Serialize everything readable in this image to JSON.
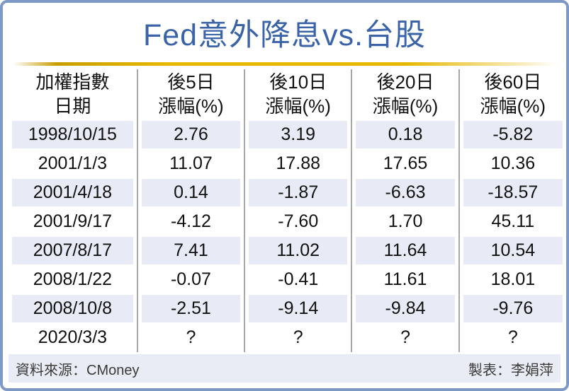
{
  "title": "Fed意外降息vs.台股",
  "table": {
    "columns": [
      {
        "line1": "加權指數",
        "line2": "日期"
      },
      {
        "line1": "後5日",
        "line2": "漲幅(%)"
      },
      {
        "line1": "後10日",
        "line2": "漲幅(%)"
      },
      {
        "line1": "後20日",
        "line2": "漲幅(%)"
      },
      {
        "line1": "後60日",
        "line2": "漲幅(%)"
      }
    ],
    "rows": [
      {
        "date": "1998/10/15",
        "values": [
          "2.76",
          "3.19",
          "0.18",
          "-5.82"
        ]
      },
      {
        "date": "2001/1/3",
        "values": [
          "11.07",
          "17.88",
          "17.65",
          "10.36"
        ]
      },
      {
        "date": "2001/4/18",
        "values": [
          "0.14",
          "-1.87",
          "-6.63",
          "-18.57"
        ]
      },
      {
        "date": "2001/9/17",
        "values": [
          "-4.12",
          "-7.60",
          "1.70",
          "45.11"
        ]
      },
      {
        "date": "2007/8/17",
        "values": [
          "7.41",
          "11.02",
          "11.64",
          "10.54"
        ]
      },
      {
        "date": "2008/1/22",
        "values": [
          "-0.07",
          "-0.41",
          "11.61",
          "18.01"
        ]
      },
      {
        "date": "2008/10/8",
        "values": [
          "-2.51",
          "-9.14",
          "-9.84",
          "-9.76"
        ]
      },
      {
        "date": "2020/3/3",
        "values": [
          "?",
          "?",
          "?",
          "?"
        ]
      }
    ]
  },
  "footer": {
    "source": "資料來源：CMoney",
    "credit": "製表：李娟萍"
  },
  "colors": {
    "title_blue": "#3a63a8",
    "frame_blue": "#7e99c5",
    "gold": "#e6b700",
    "row_stripe": "#e8ebf6",
    "footer_bg": "#e9ecf4",
    "divider_gray": "#a8a8a8"
  },
  "chart_data": {
    "type": "table",
    "title": "Fed意外降息vs.台股",
    "columns": [
      "加權指數日期",
      "後5日漲幅(%)",
      "後10日漲幅(%)",
      "後20日漲幅(%)",
      "後60日漲幅(%)"
    ],
    "rows": [
      [
        "1998/10/15",
        2.76,
        3.19,
        0.18,
        -5.82
      ],
      [
        "2001/1/3",
        11.07,
        17.88,
        17.65,
        10.36
      ],
      [
        "2001/4/18",
        0.14,
        -1.87,
        -6.63,
        -18.57
      ],
      [
        "2001/9/17",
        -4.12,
        -7.6,
        1.7,
        45.11
      ],
      [
        "2007/8/17",
        7.41,
        11.02,
        11.64,
        10.54
      ],
      [
        "2008/1/22",
        -0.07,
        -0.41,
        11.61,
        18.01
      ],
      [
        "2008/10/8",
        -2.51,
        -9.14,
        -9.84,
        -9.76
      ],
      [
        "2020/3/3",
        "?",
        "?",
        "?",
        "?"
      ]
    ],
    "source": "資料來源：CMoney",
    "credit": "製表：李娟萍"
  }
}
